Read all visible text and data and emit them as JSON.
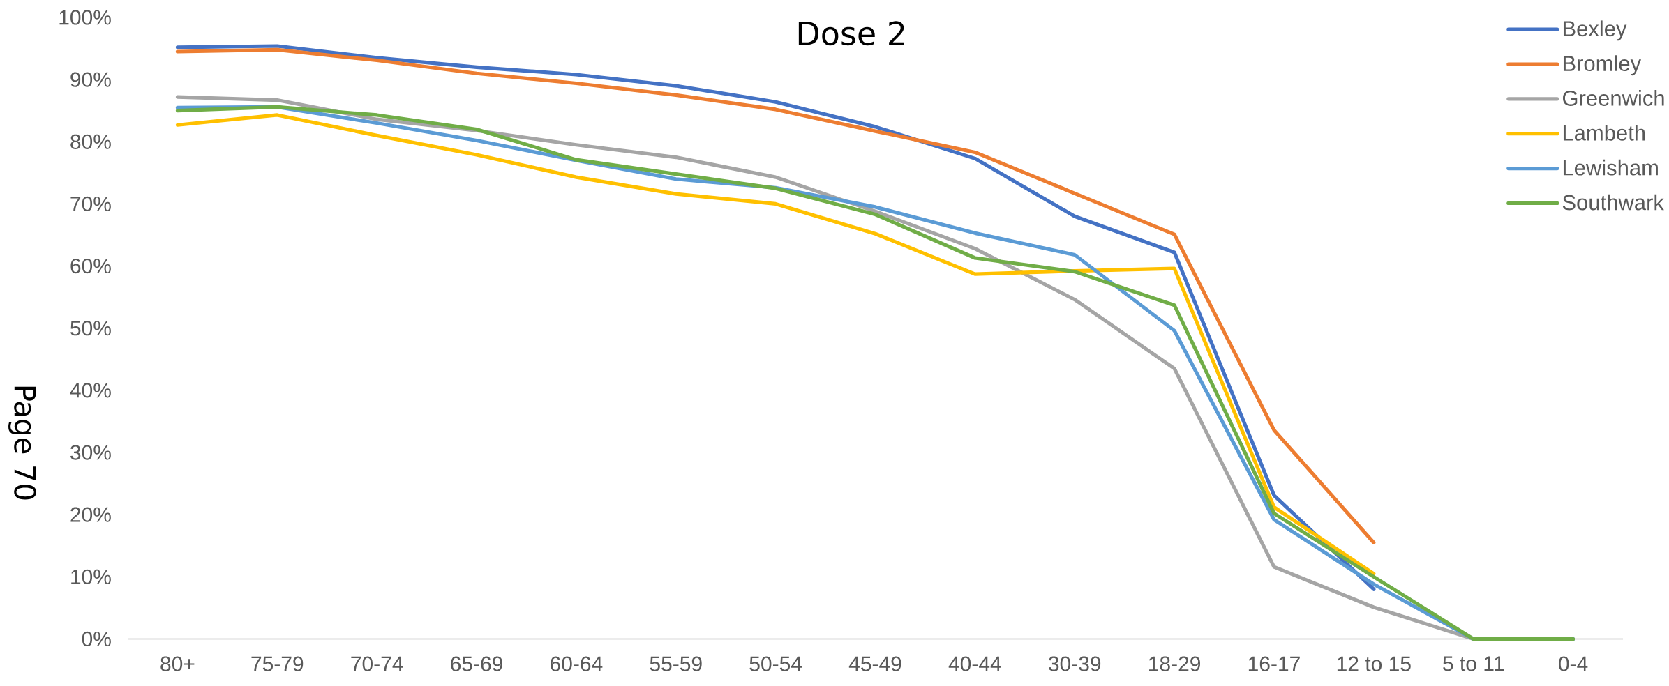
{
  "chart_data": {
    "type": "line",
    "title": "Dose 2",
    "annotations": [
      "Page 70"
    ],
    "categories": [
      "80+",
      "75-79",
      "70-74",
      "65-69",
      "60-64",
      "55-59",
      "50-54",
      "45-49",
      "40-44",
      "30-39",
      "18-29",
      "16-17",
      "12 to 15",
      "5 to 11",
      "0-4"
    ],
    "series": [
      {
        "name": "Bexley",
        "color": "#4472c4",
        "values": [
          95.2,
          95.4,
          93.5,
          92.0,
          90.8,
          89.0,
          86.4,
          82.4,
          77.3,
          68.0,
          62.2,
          23.1,
          8.0,
          null,
          null
        ]
      },
      {
        "name": "Bromley",
        "color": "#ed7d31",
        "values": [
          94.5,
          94.8,
          93.1,
          91.0,
          89.4,
          87.5,
          85.2,
          81.7,
          78.3,
          71.7,
          65.1,
          33.6,
          15.5,
          null,
          null
        ]
      },
      {
        "name": "Greenwich",
        "color": "#a5a5a5",
        "values": [
          87.2,
          86.7,
          83.6,
          81.8,
          79.5,
          77.5,
          74.3,
          68.8,
          62.8,
          54.6,
          43.5,
          11.6,
          5.1,
          0,
          0
        ]
      },
      {
        "name": "Lambeth",
        "color": "#ffc000",
        "values": [
          82.7,
          84.3,
          81.0,
          77.9,
          74.3,
          71.6,
          70.0,
          65.2,
          58.7,
          59.2,
          59.6,
          21.2,
          10.5,
          null,
          null
        ]
      },
      {
        "name": "Lewisham",
        "color": "#5b9bd5",
        "values": [
          85.5,
          85.6,
          83.0,
          80.2,
          77.0,
          74.0,
          72.6,
          69.5,
          65.3,
          61.8,
          49.6,
          19.2,
          8.8,
          0,
          0
        ]
      },
      {
        "name": "Southwark",
        "color": "#70ad47",
        "values": [
          85.0,
          85.6,
          84.3,
          82.0,
          77.1,
          74.8,
          72.5,
          68.3,
          61.3,
          59.1,
          53.7,
          20.2,
          10.0,
          0,
          0
        ]
      }
    ],
    "ylim": [
      0,
      100
    ],
    "yticks": [
      {
        "value": 0,
        "label": "0%"
      },
      {
        "value": 10,
        "label": "10%"
      },
      {
        "value": 20,
        "label": "20%"
      },
      {
        "value": 30,
        "label": "30%"
      },
      {
        "value": 40,
        "label": "40%"
      },
      {
        "value": 50,
        "label": "50%"
      },
      {
        "value": 60,
        "label": "60%"
      },
      {
        "value": 70,
        "label": "70%"
      },
      {
        "value": 80,
        "label": "80%"
      },
      {
        "value": 90,
        "label": "90%"
      },
      {
        "value": 100,
        "label": "100%"
      }
    ],
    "grid": false,
    "legend": "top right",
    "marker": "none"
  }
}
